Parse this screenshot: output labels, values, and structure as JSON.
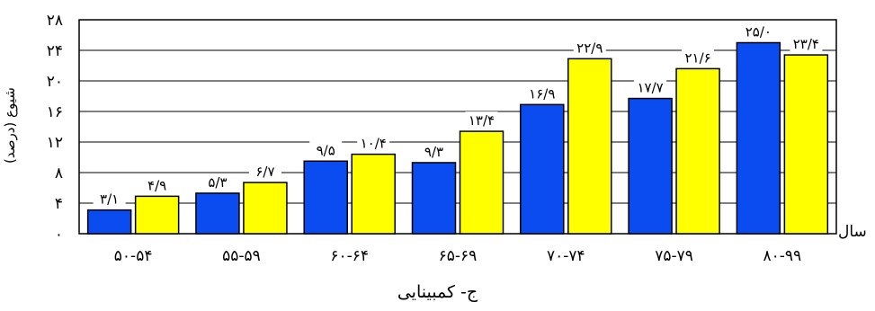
{
  "chart_data": {
    "type": "bar",
    "title": "",
    "caption": "ج- کمبینایی",
    "ylabel": "شیوع (درصد)",
    "xlabel": "سال",
    "ylim": [
      0,
      28
    ],
    "yticks": [
      0,
      4,
      8,
      12,
      16,
      20,
      24,
      28
    ],
    "ytick_labels": [
      "۰",
      "۴",
      "۸",
      "۱۲",
      "۱۶",
      "۲۰",
      "۲۴",
      "۲۸"
    ],
    "categories": [
      "۵۰-۵۴",
      "۵۵-۵۹",
      "۶۰-۶۴",
      "۶۵-۶۹",
      "۷۰-۷۴",
      "۷۵-۷۹",
      "۸۰-۹۹"
    ],
    "grid": true,
    "series": [
      {
        "color": "#0a4cf0",
        "values": [
          3.1,
          5.3,
          9.5,
          9.3,
          16.9,
          17.7,
          25.0
        ],
        "labels": [
          "۳/۱",
          "۵/۳",
          "۹/۵",
          "۹/۳",
          "۱۶/۹",
          "۱۷/۷",
          "۲۵/۰"
        ]
      },
      {
        "color": "#ffff00",
        "values": [
          4.9,
          6.7,
          10.4,
          13.4,
          22.9,
          21.6,
          23.4
        ],
        "labels": [
          "۴/۹",
          "۶/۷",
          "۱۰/۴",
          "۱۳/۴",
          "۲۲/۹",
          "۲۱/۶",
          "۲۳/۴"
        ]
      }
    ]
  }
}
